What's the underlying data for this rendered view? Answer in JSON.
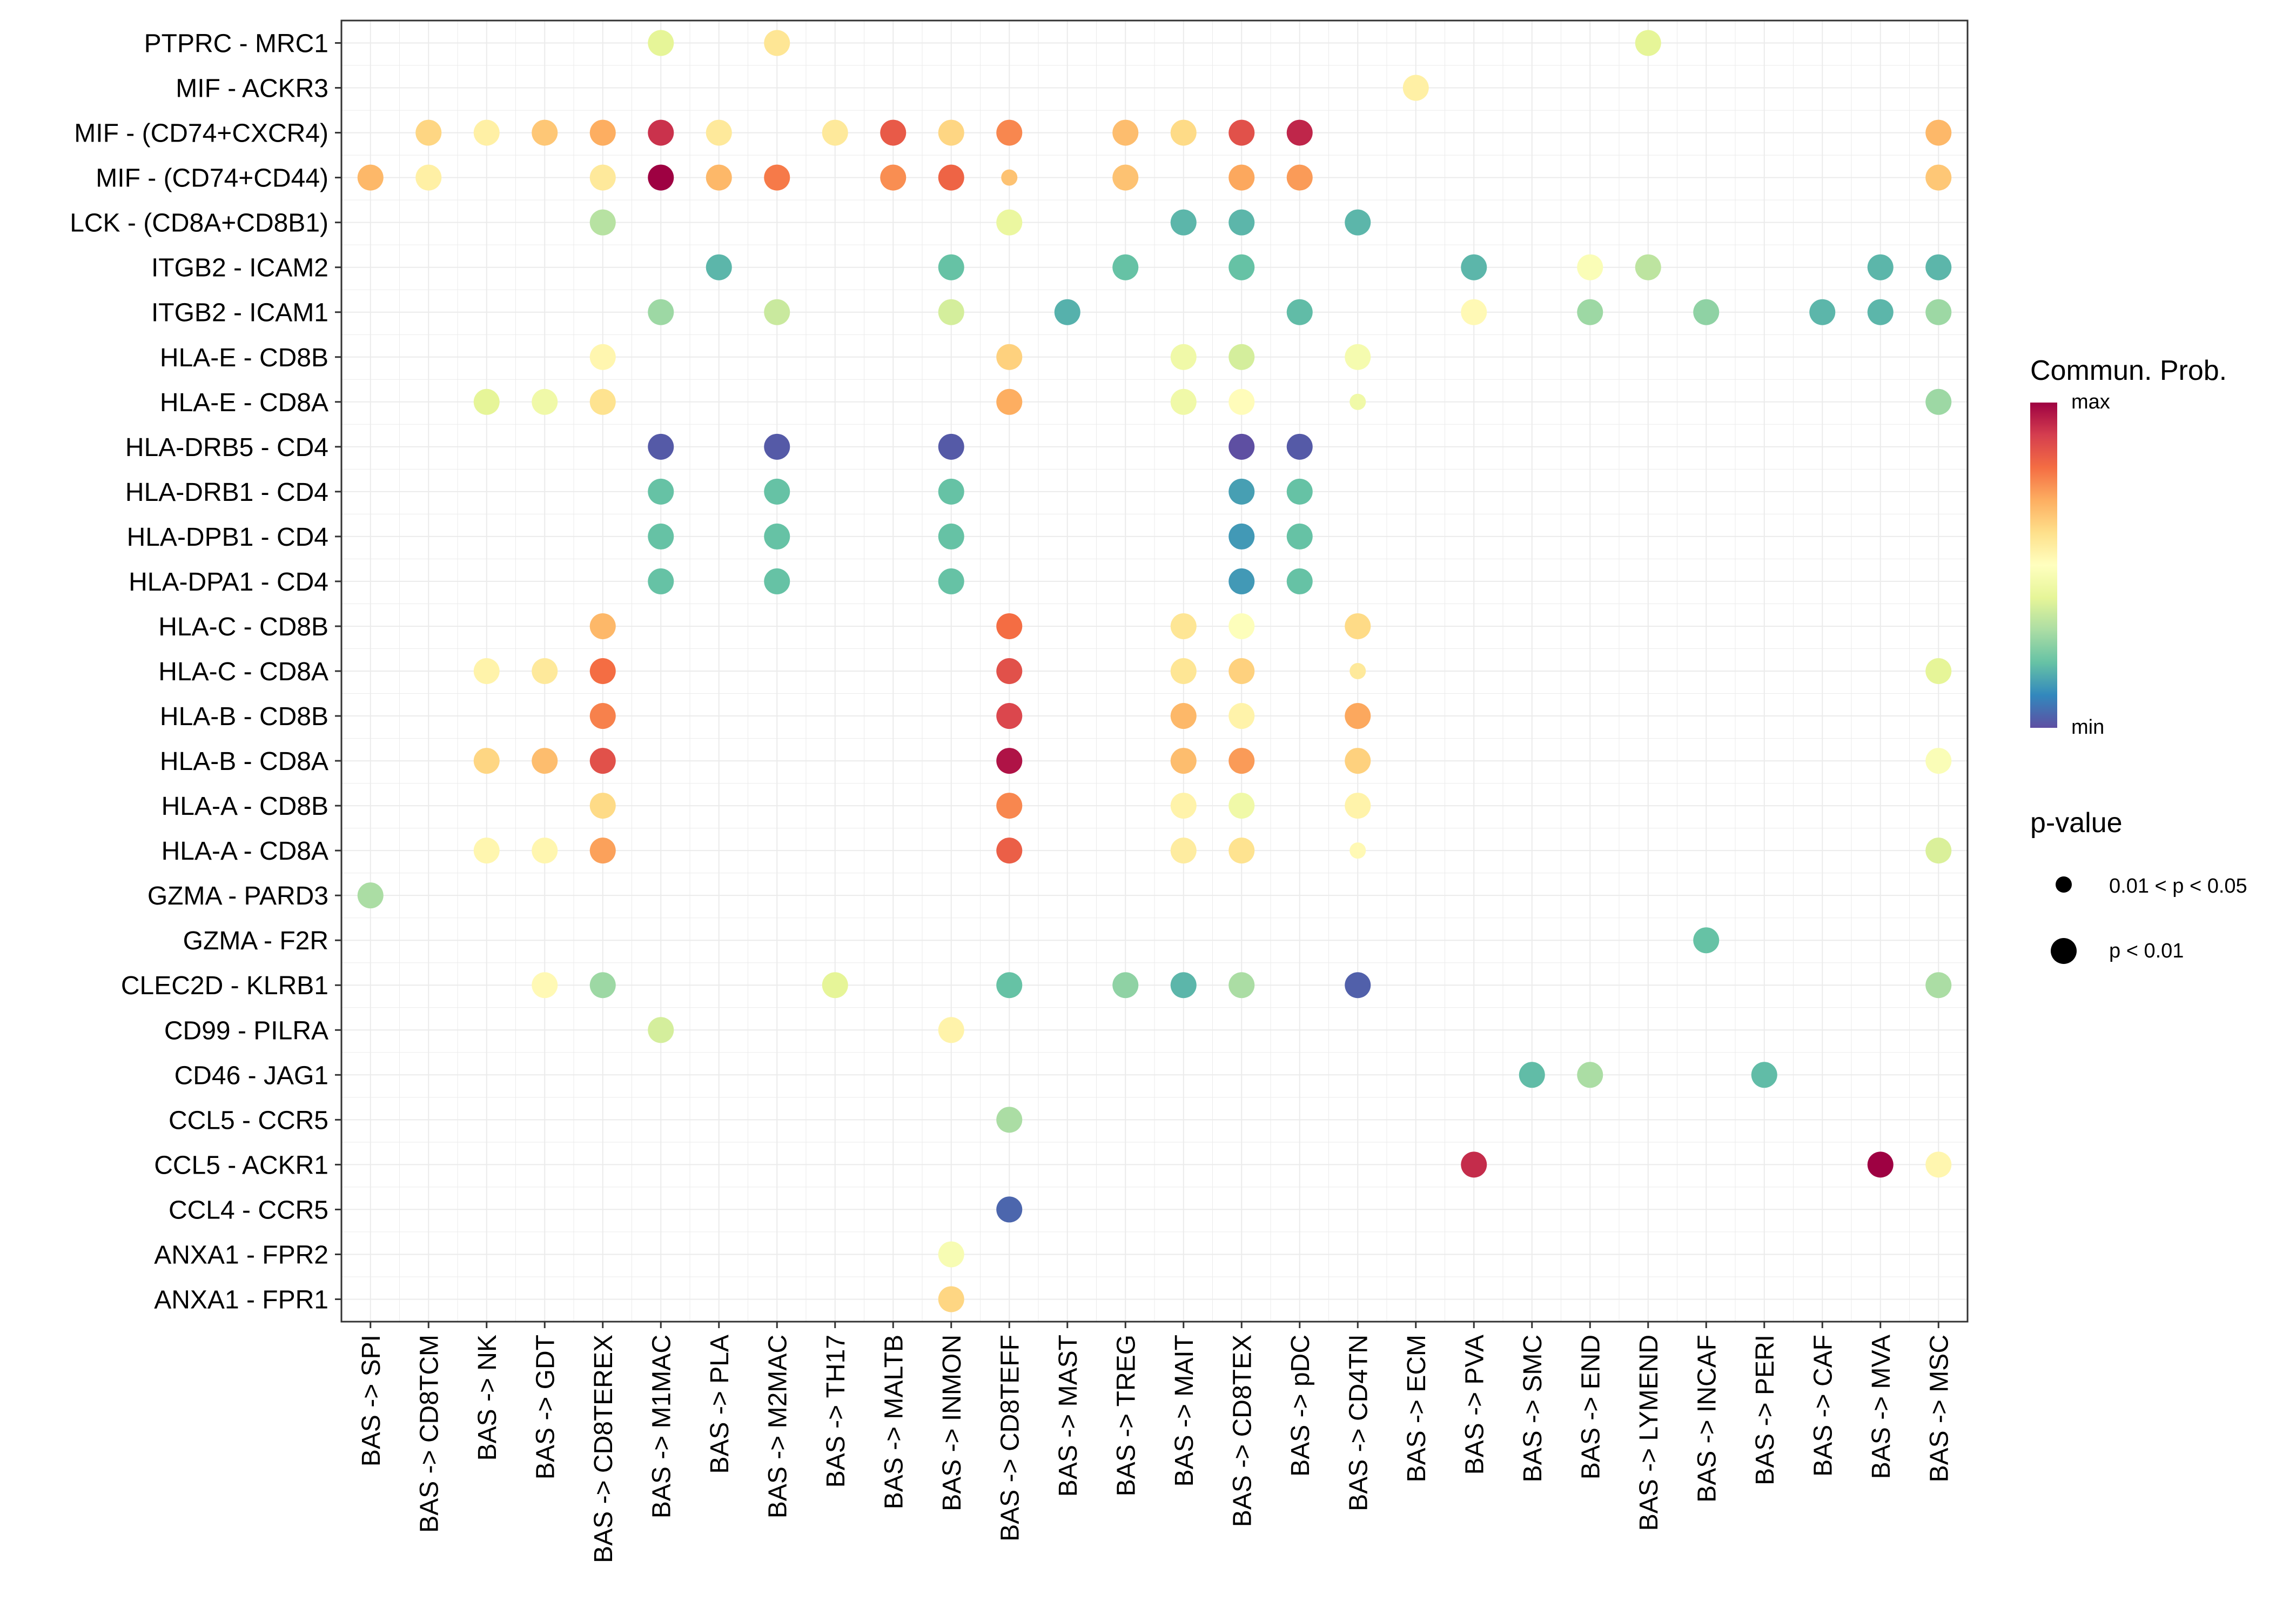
{
  "chart_data": {
    "type": "scatter",
    "subtype": "dot-plot",
    "title": "",
    "xlabel": "",
    "ylabel": "",
    "x_categories": [
      "BAS -> SPI",
      "BAS -> CD8TCM",
      "BAS -> NK",
      "BAS -> GDT",
      "BAS -> CD8TEREX",
      "BAS -> M1MAC",
      "BAS -> PLA",
      "BAS -> M2MAC",
      "BAS -> TH17",
      "BAS -> MALTB",
      "BAS -> INMON",
      "BAS -> CD8TEFF",
      "BAS -> MAST",
      "BAS -> TREG",
      "BAS -> MAIT",
      "BAS -> CD8TEX",
      "BAS -> pDC",
      "BAS -> CD4TN",
      "BAS -> ECM",
      "BAS -> PVA",
      "BAS -> SMC",
      "BAS -> END",
      "BAS -> LYMEND",
      "BAS -> INCAF",
      "BAS -> PERI",
      "BAS -> CAF",
      "BAS -> MVA",
      "BAS -> MSC"
    ],
    "y_categories": [
      "PTPRC - MRC1",
      "MIF - ACKR3",
      "MIF - (CD74+CXCR4)",
      "MIF - (CD74+CD44)",
      "LCK - (CD8A+CD8B1)",
      "ITGB2 - ICAM2",
      "ITGB2 - ICAM1",
      "HLA-E - CD8B",
      "HLA-E - CD8A",
      "HLA-DRB5 - CD4",
      "HLA-DRB1 - CD4",
      "HLA-DPB1 - CD4",
      "HLA-DPA1 - CD4",
      "HLA-C - CD8B",
      "HLA-C - CD8A",
      "HLA-B - CD8B",
      "HLA-B - CD8A",
      "HLA-A - CD8B",
      "HLA-A - CD8A",
      "GZMA - PARD3",
      "GZMA - F2R",
      "CLEC2D - KLRB1",
      "CD99 - PILRA",
      "CD46 - JAG1",
      "CCL5 - CCR5",
      "CCL5 - ACKR1",
      "CCL4 - CCR5",
      "ANXA1 - FPR2",
      "ANXA1 - FPR1"
    ],
    "points_note": "[x_index, y_index, commun_prob_normalized(0=min..1=max), pval_class(1='0.01 < p < 0.05', 2='p < 0.01')]",
    "points": [
      [
        5,
        0,
        0.4,
        2
      ],
      [
        7,
        0,
        0.58,
        2
      ],
      [
        22,
        0,
        0.4,
        2
      ],
      [
        18,
        1,
        0.55,
        2
      ],
      [
        1,
        2,
        0.62,
        2
      ],
      [
        2,
        2,
        0.55,
        2
      ],
      [
        3,
        2,
        0.65,
        2
      ],
      [
        4,
        2,
        0.7,
        2
      ],
      [
        5,
        2,
        0.92,
        2
      ],
      [
        6,
        2,
        0.57,
        2
      ],
      [
        8,
        2,
        0.57,
        2
      ],
      [
        9,
        2,
        0.84,
        2
      ],
      [
        10,
        2,
        0.62,
        2
      ],
      [
        11,
        2,
        0.76,
        2
      ],
      [
        13,
        2,
        0.67,
        2
      ],
      [
        14,
        2,
        0.61,
        2
      ],
      [
        15,
        2,
        0.86,
        2
      ],
      [
        16,
        2,
        0.94,
        2
      ],
      [
        27,
        2,
        0.68,
        2
      ],
      [
        0,
        3,
        0.68,
        2
      ],
      [
        1,
        3,
        0.55,
        2
      ],
      [
        4,
        3,
        0.57,
        2
      ],
      [
        5,
        3,
        1.0,
        2
      ],
      [
        6,
        3,
        0.68,
        2
      ],
      [
        7,
        3,
        0.78,
        2
      ],
      [
        9,
        3,
        0.75,
        2
      ],
      [
        10,
        3,
        0.82,
        2
      ],
      [
        11,
        3,
        0.66,
        1
      ],
      [
        13,
        3,
        0.66,
        2
      ],
      [
        15,
        3,
        0.71,
        2
      ],
      [
        16,
        3,
        0.73,
        2
      ],
      [
        27,
        3,
        0.65,
        2
      ],
      [
        4,
        4,
        0.32,
        2
      ],
      [
        11,
        4,
        0.42,
        2
      ],
      [
        14,
        4,
        0.18,
        2
      ],
      [
        15,
        4,
        0.18,
        2
      ],
      [
        17,
        4,
        0.18,
        2
      ],
      [
        6,
        5,
        0.18,
        2
      ],
      [
        10,
        5,
        0.2,
        2
      ],
      [
        13,
        5,
        0.2,
        2
      ],
      [
        15,
        5,
        0.2,
        2
      ],
      [
        19,
        5,
        0.18,
        2
      ],
      [
        21,
        5,
        0.48,
        2
      ],
      [
        22,
        5,
        0.33,
        2
      ],
      [
        26,
        5,
        0.18,
        2
      ],
      [
        27,
        5,
        0.18,
        2
      ],
      [
        5,
        6,
        0.28,
        2
      ],
      [
        7,
        6,
        0.35,
        2
      ],
      [
        10,
        6,
        0.37,
        2
      ],
      [
        12,
        6,
        0.17,
        2
      ],
      [
        16,
        6,
        0.19,
        2
      ],
      [
        19,
        6,
        0.52,
        2
      ],
      [
        21,
        6,
        0.28,
        2
      ],
      [
        23,
        6,
        0.26,
        2
      ],
      [
        25,
        6,
        0.18,
        2
      ],
      [
        26,
        6,
        0.18,
        2
      ],
      [
        27,
        6,
        0.28,
        2
      ],
      [
        4,
        7,
        0.53,
        2
      ],
      [
        11,
        7,
        0.63,
        2
      ],
      [
        14,
        7,
        0.44,
        2
      ],
      [
        15,
        7,
        0.37,
        2
      ],
      [
        17,
        7,
        0.46,
        2
      ],
      [
        2,
        8,
        0.4,
        2
      ],
      [
        3,
        8,
        0.44,
        2
      ],
      [
        4,
        8,
        0.59,
        2
      ],
      [
        11,
        8,
        0.7,
        2
      ],
      [
        14,
        8,
        0.44,
        2
      ],
      [
        15,
        8,
        0.51,
        2
      ],
      [
        17,
        8,
        0.44,
        1
      ],
      [
        27,
        8,
        0.28,
        2
      ],
      [
        5,
        9,
        0.02,
        2
      ],
      [
        7,
        9,
        0.02,
        2
      ],
      [
        10,
        9,
        0.02,
        2
      ],
      [
        15,
        9,
        0.0,
        2
      ],
      [
        16,
        9,
        0.02,
        2
      ],
      [
        5,
        10,
        0.2,
        2
      ],
      [
        7,
        10,
        0.2,
        2
      ],
      [
        10,
        10,
        0.2,
        2
      ],
      [
        15,
        10,
        0.14,
        2
      ],
      [
        16,
        10,
        0.2,
        2
      ],
      [
        5,
        11,
        0.2,
        2
      ],
      [
        7,
        11,
        0.2,
        2
      ],
      [
        10,
        11,
        0.2,
        2
      ],
      [
        15,
        11,
        0.13,
        2
      ],
      [
        16,
        11,
        0.2,
        2
      ],
      [
        5,
        12,
        0.2,
        2
      ],
      [
        7,
        12,
        0.2,
        2
      ],
      [
        10,
        12,
        0.2,
        2
      ],
      [
        15,
        12,
        0.13,
        2
      ],
      [
        16,
        12,
        0.2,
        2
      ],
      [
        4,
        13,
        0.68,
        2
      ],
      [
        11,
        13,
        0.8,
        2
      ],
      [
        14,
        13,
        0.58,
        2
      ],
      [
        15,
        13,
        0.49,
        2
      ],
      [
        17,
        13,
        0.61,
        2
      ],
      [
        2,
        14,
        0.54,
        2
      ],
      [
        3,
        14,
        0.57,
        2
      ],
      [
        4,
        14,
        0.8,
        2
      ],
      [
        11,
        14,
        0.86,
        2
      ],
      [
        14,
        14,
        0.58,
        2
      ],
      [
        15,
        14,
        0.63,
        2
      ],
      [
        17,
        14,
        0.57,
        1
      ],
      [
        27,
        14,
        0.4,
        2
      ],
      [
        4,
        15,
        0.77,
        2
      ],
      [
        11,
        15,
        0.88,
        2
      ],
      [
        14,
        15,
        0.68,
        2
      ],
      [
        15,
        15,
        0.54,
        2
      ],
      [
        17,
        15,
        0.71,
        2
      ],
      [
        2,
        16,
        0.62,
        2
      ],
      [
        3,
        16,
        0.67,
        2
      ],
      [
        4,
        16,
        0.86,
        2
      ],
      [
        11,
        16,
        0.97,
        2
      ],
      [
        14,
        16,
        0.67,
        2
      ],
      [
        15,
        16,
        0.73,
        2
      ],
      [
        17,
        16,
        0.63,
        2
      ],
      [
        27,
        16,
        0.48,
        2
      ],
      [
        4,
        17,
        0.61,
        2
      ],
      [
        11,
        17,
        0.76,
        2
      ],
      [
        14,
        17,
        0.54,
        2
      ],
      [
        15,
        17,
        0.44,
        2
      ],
      [
        17,
        17,
        0.54,
        2
      ],
      [
        2,
        18,
        0.53,
        2
      ],
      [
        3,
        18,
        0.53,
        2
      ],
      [
        4,
        18,
        0.72,
        2
      ],
      [
        11,
        18,
        0.83,
        2
      ],
      [
        14,
        18,
        0.56,
        2
      ],
      [
        15,
        18,
        0.59,
        2
      ],
      [
        17,
        18,
        0.52,
        1
      ],
      [
        27,
        18,
        0.38,
        2
      ],
      [
        0,
        19,
        0.3,
        2
      ],
      [
        23,
        20,
        0.2,
        2
      ],
      [
        3,
        21,
        0.52,
        2
      ],
      [
        4,
        21,
        0.28,
        2
      ],
      [
        8,
        21,
        0.4,
        2
      ],
      [
        11,
        21,
        0.2,
        2
      ],
      [
        13,
        21,
        0.26,
        2
      ],
      [
        14,
        21,
        0.18,
        2
      ],
      [
        15,
        21,
        0.3,
        2
      ],
      [
        17,
        21,
        0.03,
        2
      ],
      [
        27,
        21,
        0.3,
        2
      ],
      [
        5,
        22,
        0.37,
        2
      ],
      [
        10,
        22,
        0.54,
        2
      ],
      [
        20,
        23,
        0.19,
        2
      ],
      [
        21,
        23,
        0.3,
        2
      ],
      [
        24,
        23,
        0.19,
        2
      ],
      [
        11,
        24,
        0.3,
        2
      ],
      [
        19,
        25,
        0.93,
        2
      ],
      [
        26,
        25,
        1.0,
        2
      ],
      [
        27,
        25,
        0.53,
        2
      ],
      [
        11,
        26,
        0.04,
        2
      ],
      [
        10,
        27,
        0.47,
        2
      ],
      [
        10,
        28,
        0.62,
        2
      ]
    ],
    "colorbar": {
      "title": "Commun. Prob.",
      "max_label": "max",
      "min_label": "min",
      "palette": "Spectral"
    },
    "size_legend": {
      "title": "p-value",
      "entries": [
        {
          "label": "0.01 < p < 0.05",
          "class": 1
        },
        {
          "label": "p < 0.01",
          "class": 2
        }
      ]
    },
    "colors": {
      "spectral": [
        "#5E4FA2",
        "#3288BD",
        "#66C2A5",
        "#ABDDA4",
        "#E6F598",
        "#FFFFBF",
        "#FEE08B",
        "#FDAE61",
        "#F46D43",
        "#D53E4F",
        "#9E0142"
      ],
      "grid": "#ebebeb",
      "axis": "#333333"
    }
  }
}
